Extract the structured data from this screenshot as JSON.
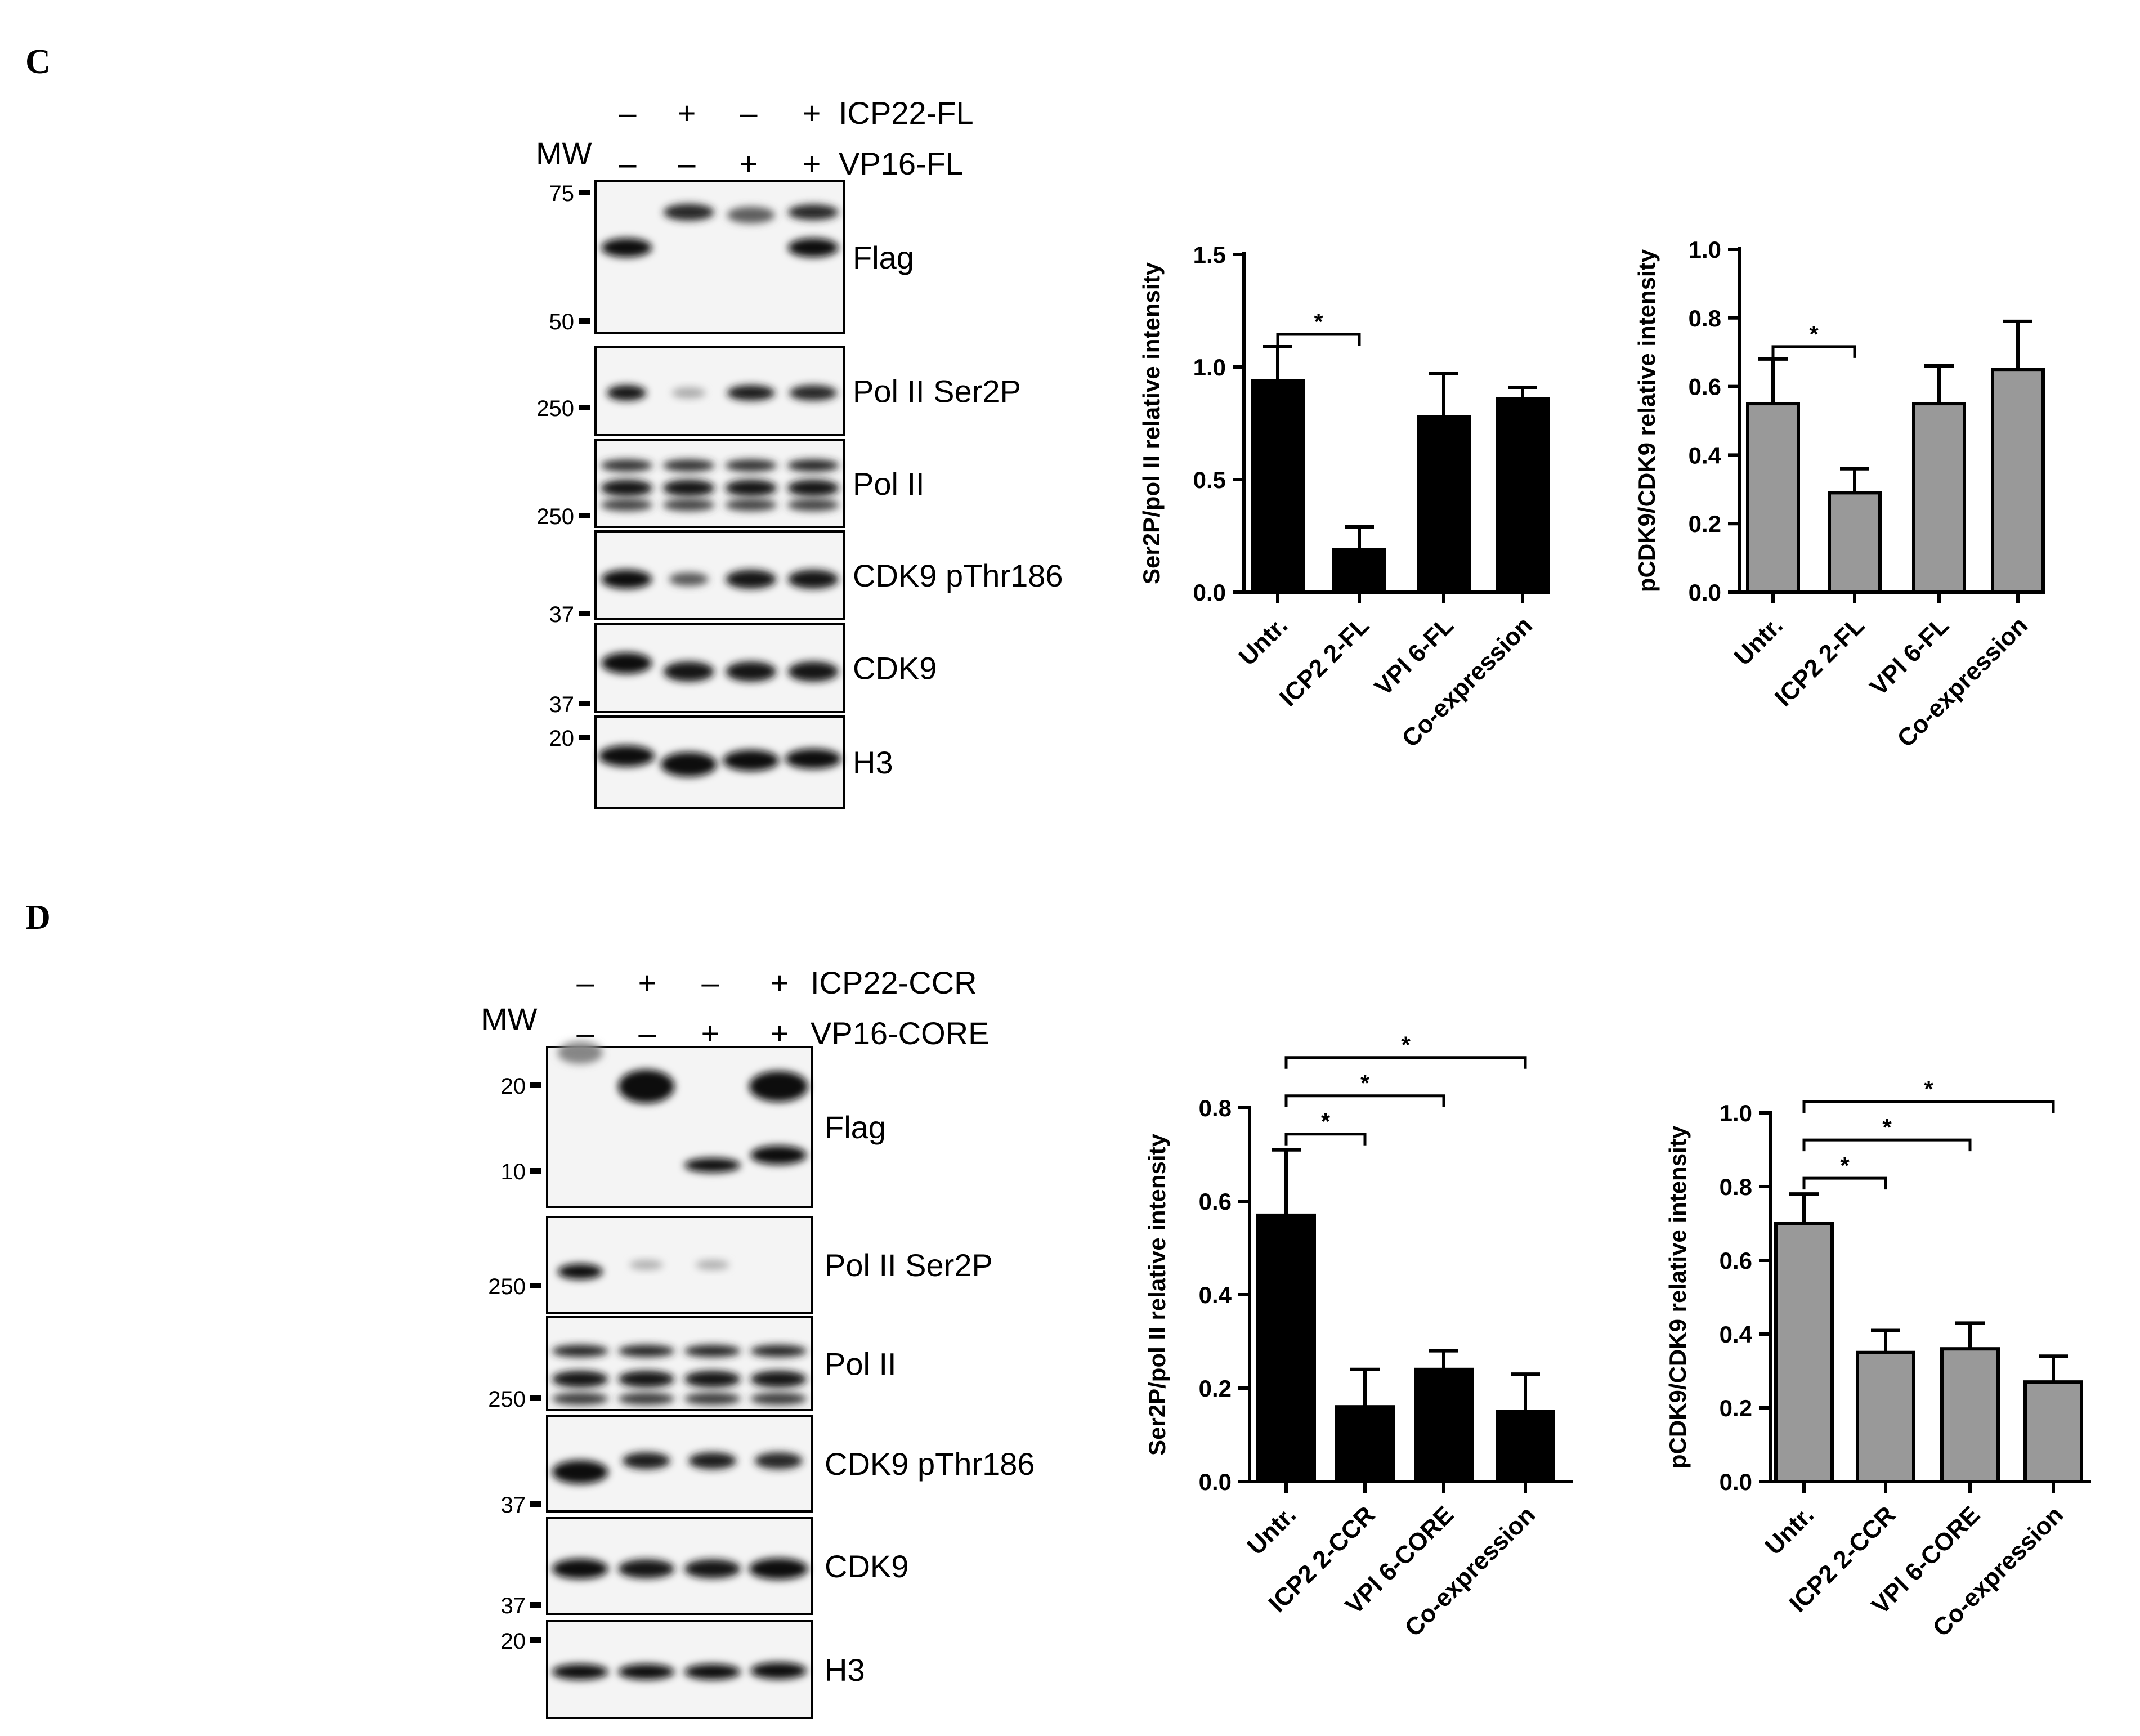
{
  "panels": [
    {
      "letter": "C",
      "mw_label": "MW",
      "rows": [
        {
          "label": "ICP22-FL",
          "signs": [
            "–",
            "+",
            "–",
            "+"
          ]
        },
        {
          "label": "VP16-FL",
          "signs": [
            "–",
            "–",
            "+",
            "+"
          ]
        }
      ],
      "blots": [
        {
          "label": "Flag",
          "markers": [
            "75",
            "50"
          ]
        },
        {
          "label": "Pol II Ser2P",
          "markers": [
            "250"
          ]
        },
        {
          "label": "Pol II",
          "markers": [
            "250"
          ]
        },
        {
          "label": "CDK9 pThr186",
          "markers": [
            "37"
          ]
        },
        {
          "label": "CDK9",
          "markers": [
            "37"
          ]
        },
        {
          "label": "H3",
          "markers": [
            "20"
          ]
        }
      ]
    },
    {
      "letter": "D",
      "mw_label": "MW",
      "rows": [
        {
          "label": "ICP22-CCR",
          "signs": [
            "–",
            "+",
            "–",
            "+"
          ]
        },
        {
          "label": "VP16-CORE",
          "signs": [
            "–",
            "–",
            "+",
            "+"
          ]
        }
      ],
      "blots": [
        {
          "label": "Flag",
          "markers": [
            "20",
            "10"
          ]
        },
        {
          "label": "Pol II Ser2P",
          "markers": [
            "250"
          ]
        },
        {
          "label": "Pol II",
          "markers": [
            "250"
          ]
        },
        {
          "label": "CDK9 pThr186",
          "markers": [
            "37"
          ]
        },
        {
          "label": "CDK9",
          "markers": [
            "37"
          ]
        },
        {
          "label": "H3",
          "markers": [
            "20"
          ]
        }
      ]
    }
  ],
  "chart_data": [
    {
      "type": "bar",
      "panel": "C",
      "ylabel": "Ser2P/pol II relative intensity",
      "ylim": [
        0,
        1.5
      ],
      "yticks": [
        "0.0",
        "0.5",
        "1.0",
        "1.5"
      ],
      "categories": [
        "Untr.",
        "ICP2 2-FL",
        "VPl 6-FL",
        "Co-expression"
      ],
      "values": [
        0.94,
        0.19,
        0.78,
        0.86
      ],
      "errors": [
        0.15,
        0.1,
        0.19,
        0.05
      ],
      "color": "#000000",
      "significance": [
        {
          "from": 0,
          "to": 1,
          "label": "*"
        }
      ]
    },
    {
      "type": "bar",
      "panel": "C",
      "ylabel": "pCDK9/CDK9 relative intensity",
      "ylim": [
        0,
        1.0
      ],
      "yticks": [
        "0.0",
        "0.2",
        "0.4",
        "0.6",
        "0.8",
        "1.0"
      ],
      "categories": [
        "Untr.",
        "ICP2 2-FL",
        "VPl 6-FL",
        "Co-expression"
      ],
      "values": [
        0.55,
        0.29,
        0.55,
        0.65
      ],
      "errors": [
        0.13,
        0.07,
        0.11,
        0.14
      ],
      "color": "#999999",
      "significance": [
        {
          "from": 0,
          "to": 1,
          "label": "*"
        }
      ]
    },
    {
      "type": "bar",
      "panel": "D",
      "ylabel": "Ser2P/pol II relative intensity",
      "ylim": [
        0,
        0.8
      ],
      "yticks": [
        "0.0",
        "0.2",
        "0.4",
        "0.6",
        "0.8"
      ],
      "categories": [
        "Untr.",
        "ICP2 2-CCR",
        "VPl 6-CORE",
        "Co-expression"
      ],
      "values": [
        0.57,
        0.16,
        0.24,
        0.15
      ],
      "errors": [
        0.14,
        0.08,
        0.04,
        0.08
      ],
      "color": "#000000",
      "significance": [
        {
          "from": 0,
          "to": 1,
          "label": "*"
        },
        {
          "from": 0,
          "to": 2,
          "label": "*"
        },
        {
          "from": 0,
          "to": 3,
          "label": "*"
        }
      ]
    },
    {
      "type": "bar",
      "panel": "D",
      "ylabel": "pCDK9/CDK9 relative intensity",
      "ylim": [
        0,
        1.0
      ],
      "yticks": [
        "0.0",
        "0.2",
        "0.4",
        "0.6",
        "0.8",
        "1.0"
      ],
      "categories": [
        "Untr.",
        "ICP2 2-CCR",
        "VPl 6-CORE",
        "Co-expression"
      ],
      "values": [
        0.7,
        0.35,
        0.36,
        0.27
      ],
      "errors": [
        0.08,
        0.06,
        0.07,
        0.07
      ],
      "color": "#999999",
      "significance": [
        {
          "from": 0,
          "to": 1,
          "label": "*"
        },
        {
          "from": 0,
          "to": 2,
          "label": "*"
        },
        {
          "from": 0,
          "to": 3,
          "label": "*"
        }
      ]
    }
  ]
}
